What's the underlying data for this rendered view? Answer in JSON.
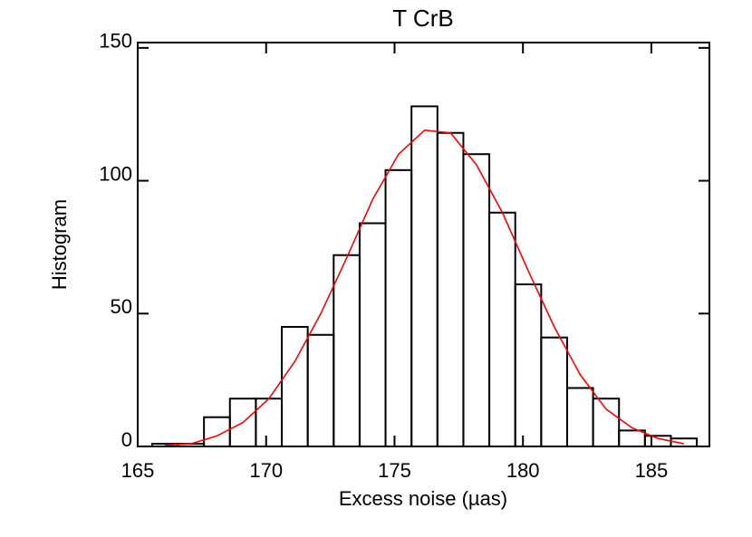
{
  "chart_data": {
    "type": "histogram",
    "title": "T CrB",
    "x_label": "Excess noise (µas)",
    "y_label": "Histogram",
    "bins": [
      165.56,
      166.57,
      167.58,
      168.59,
      169.6,
      170.61,
      171.62,
      172.63,
      173.64,
      174.65,
      175.66,
      176.67,
      177.68,
      178.69,
      179.7,
      180.71,
      181.72,
      182.73,
      183.74,
      184.75,
      185.76,
      186.77
    ],
    "values": [
      1,
      1,
      11,
      18,
      18,
      45,
      42,
      72,
      84,
      104,
      128,
      118,
      110,
      88,
      61,
      41,
      22,
      18,
      6,
      4,
      3
    ],
    "color": "#000000",
    "fit": {
      "x": [
        166.07,
        167.08,
        168.09,
        169.1,
        170.11,
        171.12,
        172.13,
        173.14,
        174.15,
        175.16,
        176.17,
        177.18,
        178.19,
        179.2,
        180.21,
        181.22,
        182.23,
        183.24,
        184.25,
        185.26,
        186.27
      ],
      "values": [
        0.5,
        1,
        4,
        9,
        18,
        32,
        50,
        71,
        93,
        110,
        119,
        118,
        106,
        88,
        66,
        45,
        27,
        14,
        7,
        3,
        1
      ],
      "color": "#ff0000"
    },
    "xlim": [
      165,
      187.26
    ],
    "xticks": [
      165,
      170,
      175,
      180,
      185
    ],
    "ylim": [
      0,
      152
    ],
    "yticks": [
      0,
      50,
      100,
      150
    ]
  }
}
